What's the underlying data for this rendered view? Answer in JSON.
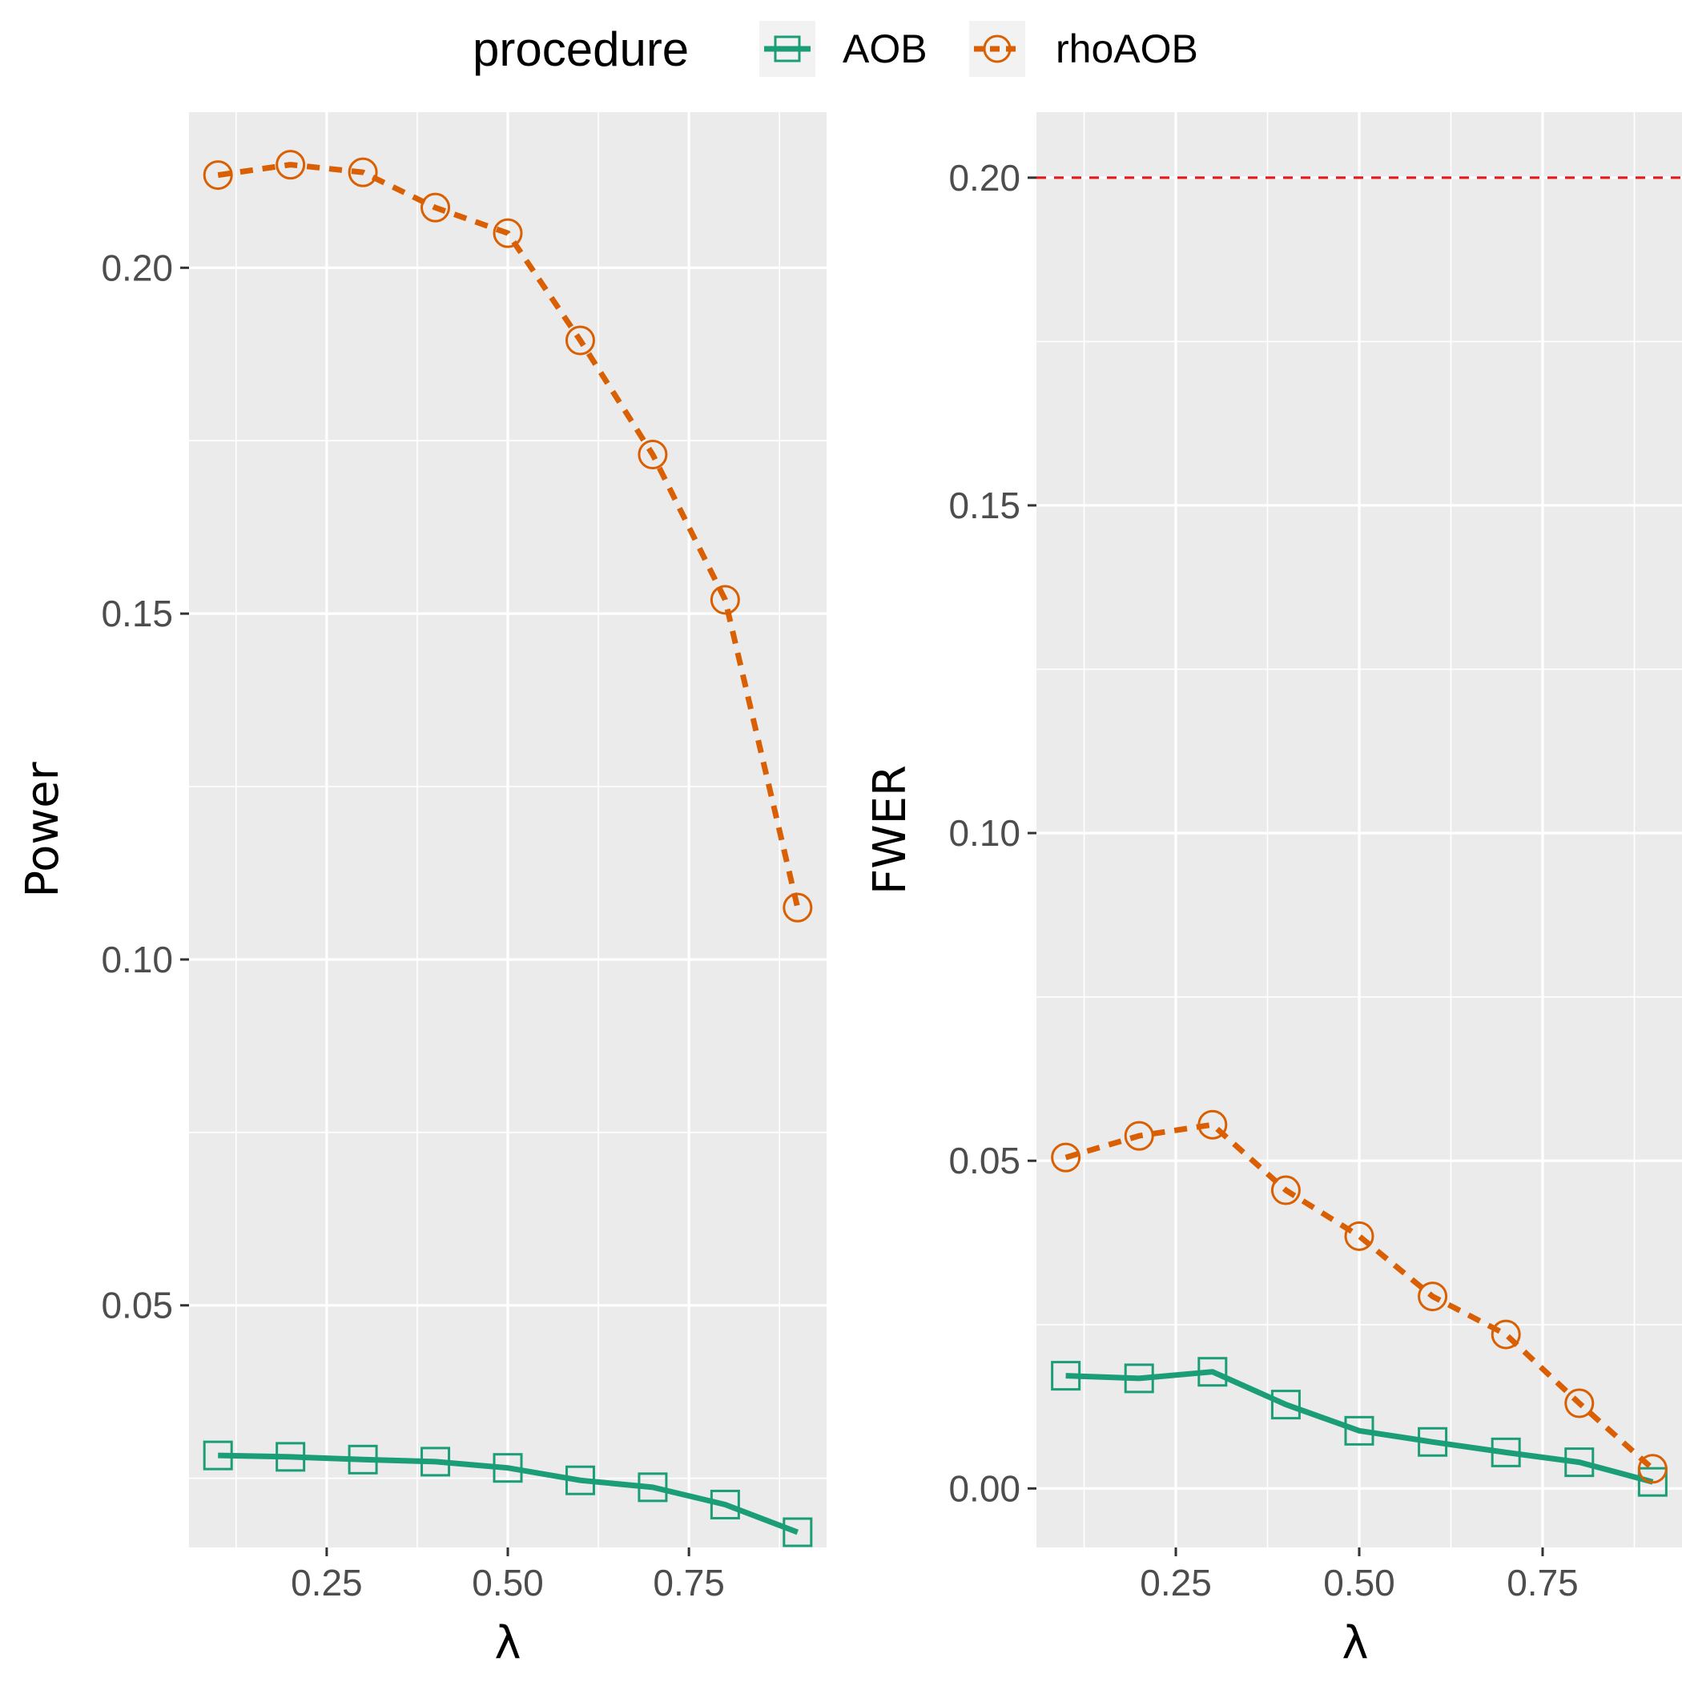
{
  "legend": {
    "title": "procedure",
    "items": [
      {
        "name": "AOB",
        "color": "#1B9E77",
        "shape": "square",
        "linetype": "solid"
      },
      {
        "name": "rhoAOB",
        "color": "#D95F02",
        "shape": "circle",
        "linetype": "dashed"
      }
    ]
  },
  "chart_data": [
    {
      "type": "line",
      "panel": "left",
      "xlabel": "λ",
      "ylabel": "Power",
      "xlim": [
        0.06,
        0.94
      ],
      "ylim": [
        0.015,
        0.2225
      ],
      "xticks": [
        "0.25",
        "0.50",
        "0.75"
      ],
      "xtick_values": [
        0.25,
        0.5,
        0.75
      ],
      "yticks": [
        "0.05",
        "0.10",
        "0.15",
        "0.20"
      ],
      "ytick_values": [
        0.05,
        0.1,
        0.15,
        0.2
      ],
      "x": [
        0.1,
        0.2,
        0.3,
        0.4,
        0.5,
        0.6,
        0.7,
        0.8,
        0.9
      ],
      "series": [
        {
          "name": "AOB",
          "values": [
            0.0283,
            0.0281,
            0.0277,
            0.0274,
            0.0265,
            0.0247,
            0.0237,
            0.0212,
            0.0172
          ]
        },
        {
          "name": "rhoAOB",
          "values": [
            0.2134,
            0.2149,
            0.2138,
            0.2087,
            0.205,
            0.1895,
            0.173,
            0.152,
            0.1075
          ]
        }
      ]
    },
    {
      "type": "line",
      "panel": "right",
      "xlabel": "λ",
      "ylabel": "FWER",
      "xlim": [
        0.06,
        0.94
      ],
      "ylim": [
        -0.009,
        0.21
      ],
      "xticks": [
        "0.25",
        "0.50",
        "0.75"
      ],
      "xtick_values": [
        0.25,
        0.5,
        0.75
      ],
      "yticks": [
        "0.00",
        "0.05",
        "0.10",
        "0.15",
        "0.20"
      ],
      "ytick_values": [
        0.0,
        0.05,
        0.1,
        0.15,
        0.2
      ],
      "x": [
        0.1,
        0.2,
        0.3,
        0.4,
        0.5,
        0.6,
        0.7,
        0.8,
        0.9
      ],
      "reference_line": {
        "y": 0.2,
        "color": "#E41A1C",
        "linetype": "dashed"
      },
      "series": [
        {
          "name": "AOB",
          "values": [
            0.0172,
            0.0168,
            0.0178,
            0.0128,
            0.0088,
            0.0071,
            0.0055,
            0.004,
            0.001
          ]
        },
        {
          "name": "rhoAOB",
          "values": [
            0.0505,
            0.0538,
            0.0555,
            0.0455,
            0.0385,
            0.0293,
            0.0235,
            0.013,
            0.003
          ]
        }
      ]
    }
  ]
}
